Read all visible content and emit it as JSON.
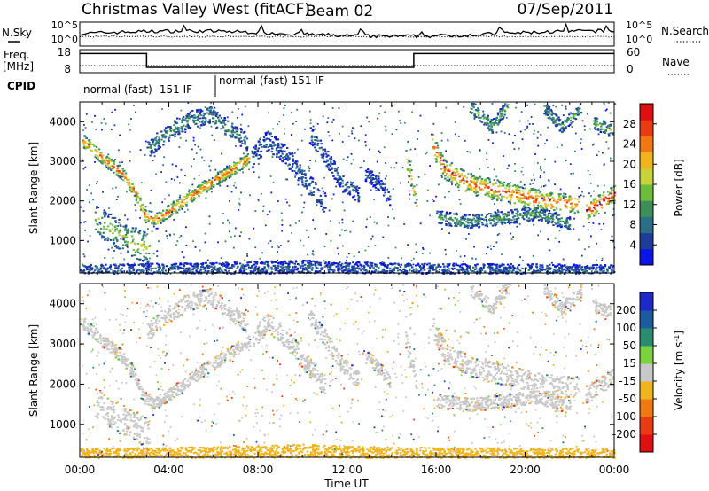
{
  "header": {
    "station": "Christmas Valley West (fitACF)",
    "beam": "Beam 02",
    "date": "07/Sep/2011"
  },
  "params": {
    "nsky_label": "N.Sky",
    "nsearch_label": "N.Search",
    "freq_label": "Freq.",
    "freq_unit": "[MHz]",
    "nave_label": "Nave",
    "cpid_label": "CPID",
    "nsky_ticks": [
      "10^5",
      "10^0"
    ],
    "nsearch_ticks": [
      "10^5",
      "10^0"
    ],
    "freq_ticks": [
      "18",
      "8"
    ],
    "nave_ticks": [
      "60",
      "0"
    ],
    "cpid_segments": [
      {
        "start_h": 0.0,
        "end_h": 6.0,
        "label": "normal (fast) -151 IF"
      },
      {
        "start_h": 6.0,
        "end_h": 24.0,
        "label": "normal (fast) 151 IF"
      }
    ],
    "freq_steps": [
      {
        "start_h": 0.0,
        "end_h": 3.0,
        "level": 17
      },
      {
        "start_h": 3.0,
        "end_h": 15.0,
        "level": 10.5
      },
      {
        "start_h": 15.0,
        "end_h": 24.0,
        "level": 17
      }
    ]
  },
  "chart_data": [
    {
      "type": "heatmap",
      "quantity": "Power",
      "ylabel": "Slant Range [km]",
      "ylim": [
        180,
        4500
      ],
      "xlim_hours": [
        0,
        24
      ],
      "yticks": [
        1000,
        2000,
        3000,
        4000
      ],
      "colorbar_label": "Power [dB]",
      "colorbar_ticks": [
        "28",
        "24",
        "20",
        "16",
        "12",
        "8",
        "4"
      ],
      "colorbar_range": [
        0,
        30
      ],
      "colors": [
        "#0a14e6",
        "#1e3c9b",
        "#2a6e8a",
        "#3d8f5a",
        "#6cbd3a",
        "#c8d23a",
        "#f2b41e",
        "#f07814",
        "#e83c10",
        "#e01010"
      ],
      "features": [
        {
          "name": "band_a",
          "path": [
            [
              0.1,
              3550
            ],
            [
              0.6,
              3300
            ],
            [
              1.2,
              3000
            ],
            [
              1.8,
              2750
            ],
            [
              2.4,
              2300
            ],
            [
              2.9,
              1650
            ],
            [
              3.4,
              1550
            ],
            [
              4.5,
              1950
            ],
            [
              5.5,
              2350
            ],
            [
              6.5,
              2700
            ],
            [
              7.6,
              3100
            ]
          ],
          "width_km": 160,
          "power_db": 22
        },
        {
          "name": "upper_arc",
          "path": [
            [
              3.0,
              3300
            ],
            [
              3.8,
              3700
            ],
            [
              4.8,
              4050
            ],
            [
              5.8,
              4200
            ],
            [
              7.5,
              3500
            ]
          ],
          "width_km": 220,
          "power_db": 9
        },
        {
          "name": "low_patch",
          "path": [
            [
              0.6,
              1600
            ],
            [
              1.5,
              1250
            ],
            [
              2.3,
              1000
            ],
            [
              3.1,
              800
            ]
          ],
          "width_km": 380,
          "power_db": 14
        },
        {
          "name": "mid_arc_1",
          "path": [
            [
              7.7,
              3100
            ],
            [
              8.4,
              3550
            ],
            [
              9.2,
              3200
            ],
            [
              10.1,
              2550
            ],
            [
              11.0,
              1950
            ]
          ],
          "width_km": 250,
          "power_db": 6
        },
        {
          "name": "mid_arc_2",
          "path": [
            [
              10.3,
              3700
            ],
            [
              11.0,
              3150
            ],
            [
              11.8,
              2450
            ],
            [
              12.5,
              2150
            ]
          ],
          "width_km": 220,
          "power_db": 6
        },
        {
          "name": "mid_arc_3",
          "path": [
            [
              12.8,
              2700
            ],
            [
              13.4,
              2450
            ],
            [
              13.9,
              2050
            ]
          ],
          "width_km": 180,
          "power_db": 5
        },
        {
          "name": "band_b",
          "path": [
            [
              14.6,
              3150
            ],
            [
              14.9,
              2500
            ],
            [
              15.1,
              1900
            ]
          ],
          "width_km": 220,
          "power_db": 18
        },
        {
          "name": "band_c",
          "path": [
            [
              15.8,
              3450
            ],
            [
              16.4,
              2800
            ],
            [
              17.5,
              2450
            ],
            [
              19.0,
              2250
            ],
            [
              20.5,
              2050
            ],
            [
              21.5,
              1950
            ],
            [
              22.4,
              1950
            ]
          ],
          "width_km": 260,
          "power_db": 23
        },
        {
          "name": "band_c_lower",
          "path": [
            [
              16.0,
              1600
            ],
            [
              17.5,
              1500
            ],
            [
              19.0,
              1600
            ],
            [
              20.5,
              1700
            ],
            [
              22.0,
              1450
            ]
          ],
          "width_km": 170,
          "power_db": 10
        },
        {
          "name": "top_right_arc",
          "path": [
            [
              17.5,
              4400
            ],
            [
              18.5,
              3900
            ],
            [
              19.2,
              4450
            ]
          ],
          "width_km": 170,
          "power_db": 12
        },
        {
          "name": "top_right_arc_2",
          "path": [
            [
              20.8,
              4400
            ],
            [
              21.6,
              3900
            ],
            [
              22.5,
              4350
            ]
          ],
          "width_km": 160,
          "power_db": 10
        },
        {
          "name": "end_band",
          "path": [
            [
              22.7,
              1750
            ],
            [
              23.3,
              1950
            ],
            [
              24.0,
              2200
            ]
          ],
          "width_km": 220,
          "power_db": 26
        },
        {
          "name": "end_top",
          "path": [
            [
              23.0,
              4000
            ],
            [
              23.8,
              3800
            ]
          ],
          "width_km": 160,
          "power_db": 13
        },
        {
          "name": "ground_scatter",
          "path": [
            [
              0.0,
              260
            ],
            [
              6.0,
              300
            ],
            [
              10.0,
              360
            ],
            [
              14.0,
              290
            ],
            [
              24.0,
              250
            ]
          ],
          "width_km": 160,
          "power_db": 6
        }
      ]
    },
    {
      "type": "heatmap",
      "quantity": "Velocity",
      "ylabel": "Slant Range [km]",
      "xlabel": "Time UT",
      "ylim": [
        180,
        4500
      ],
      "xlim_hours": [
        0,
        24
      ],
      "xticks": [
        "00:00",
        "04:00",
        "08:00",
        "12:00",
        "16:00",
        "20:00",
        "00:00"
      ],
      "yticks": [
        1000,
        2000,
        3000,
        4000
      ],
      "colorbar_label": "Velocity [m s^-1]",
      "colorbar_ticks": [
        "200",
        "100",
        "50",
        "15",
        "-15",
        "-50",
        "-100",
        "-200"
      ],
      "colors": [
        "#1c28c8",
        "#1e5aa0",
        "#2a8c6e",
        "#7ad23c",
        "#c8c8c8",
        "#f0b41e",
        "#f07814",
        "#e83c10",
        "#e01010"
      ],
      "ground_scatter_color": "#c8c8c8"
    }
  ]
}
